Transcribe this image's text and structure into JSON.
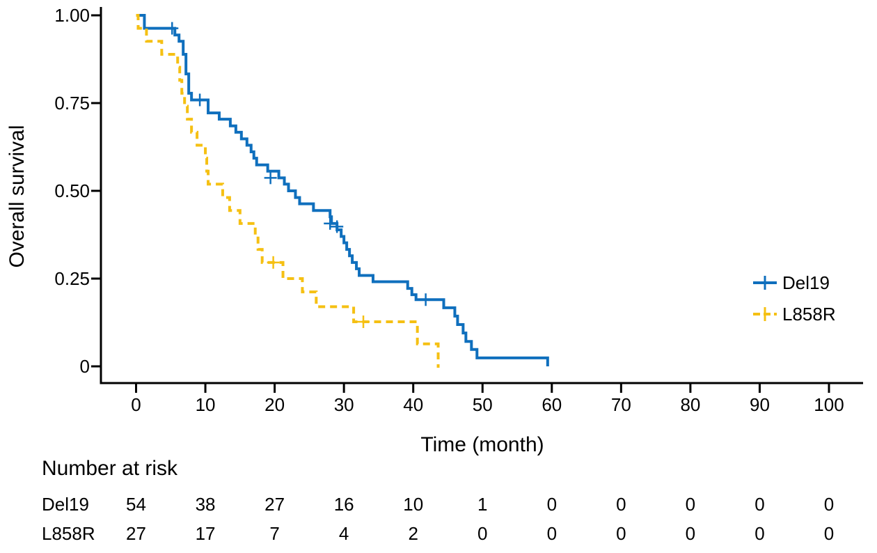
{
  "chart_data": {
    "type": "line",
    "title": "",
    "xlabel": "Time (month)",
    "ylabel": "Overall survival",
    "xlim": [
      0,
      100
    ],
    "ylim": [
      0,
      1
    ],
    "x_ticks": [
      0,
      10,
      20,
      30,
      40,
      50,
      60,
      70,
      80,
      90,
      100
    ],
    "y_ticks": [
      {
        "value": 0,
        "label": "0"
      },
      {
        "value": 0.25,
        "label": "0.25"
      },
      {
        "value": 0.5,
        "label": "0.50"
      },
      {
        "value": 0.75,
        "label": "0.75"
      },
      {
        "value": 1,
        "label": "1.00"
      }
    ],
    "grid": false,
    "legend_position": "right",
    "series": [
      {
        "name": "Del19",
        "color": "#0f6fbd",
        "dash": "solid",
        "step_points": [
          [
            0,
            1.0
          ],
          [
            1.2,
            0.963
          ],
          [
            5.6,
            0.944
          ],
          [
            6.2,
            0.926
          ],
          [
            6.8,
            0.889
          ],
          [
            7.2,
            0.833
          ],
          [
            7.6,
            0.778
          ],
          [
            8.0,
            0.759
          ],
          [
            10.4,
            0.722
          ],
          [
            12.0,
            0.704
          ],
          [
            13.6,
            0.685
          ],
          [
            14.4,
            0.667
          ],
          [
            15.2,
            0.648
          ],
          [
            16.0,
            0.63
          ],
          [
            16.6,
            0.611
          ],
          [
            17.0,
            0.593
          ],
          [
            17.4,
            0.574
          ],
          [
            19.0,
            0.556
          ],
          [
            20.6,
            0.537
          ],
          [
            21.4,
            0.519
          ],
          [
            22.0,
            0.5
          ],
          [
            23.0,
            0.481
          ],
          [
            23.6,
            0.463
          ],
          [
            25.6,
            0.444
          ],
          [
            28.0,
            0.426
          ],
          [
            28.2,
            0.407
          ],
          [
            29.0,
            0.389
          ],
          [
            29.6,
            0.37
          ],
          [
            30.0,
            0.352
          ],
          [
            30.4,
            0.333
          ],
          [
            30.8,
            0.315
          ],
          [
            31.2,
            0.296
          ],
          [
            31.8,
            0.278
          ],
          [
            32.2,
            0.259
          ],
          [
            34.2,
            0.241
          ],
          [
            39.2,
            0.222
          ],
          [
            39.8,
            0.204
          ],
          [
            40.4,
            0.19
          ],
          [
            44.4,
            0.167
          ],
          [
            46.0,
            0.143
          ],
          [
            46.4,
            0.119
          ],
          [
            47.2,
            0.095
          ],
          [
            47.6,
            0.071
          ],
          [
            48.4,
            0.048
          ],
          [
            49.2,
            0.024
          ],
          [
            59.4,
            0.0
          ]
        ],
        "end_x": 59.4,
        "censored": [
          [
            5.2,
            0.963
          ],
          [
            9.2,
            0.759
          ],
          [
            19.4,
            0.537
          ],
          [
            28.0,
            0.407
          ],
          [
            29.0,
            0.398
          ],
          [
            41.8,
            0.19
          ]
        ]
      },
      {
        "name": "L858R",
        "color": "#f5c013",
        "dash": "dashed",
        "step_points": [
          [
            0,
            1.0
          ],
          [
            0.3,
            0.963
          ],
          [
            1.5,
            0.926
          ],
          [
            3.7,
            0.889
          ],
          [
            6.0,
            0.852
          ],
          [
            6.3,
            0.815
          ],
          [
            6.6,
            0.778
          ],
          [
            7.0,
            0.741
          ],
          [
            7.4,
            0.704
          ],
          [
            8.0,
            0.667
          ],
          [
            8.8,
            0.63
          ],
          [
            10.0,
            0.593
          ],
          [
            10.2,
            0.556
          ],
          [
            10.4,
            0.519
          ],
          [
            12.5,
            0.481
          ],
          [
            13.5,
            0.444
          ],
          [
            15.0,
            0.407
          ],
          [
            17.2,
            0.37
          ],
          [
            17.6,
            0.333
          ],
          [
            18.2,
            0.296
          ],
          [
            21.2,
            0.25
          ],
          [
            24.0,
            0.212
          ],
          [
            26.0,
            0.17
          ],
          [
            31.4,
            0.127
          ],
          [
            40.6,
            0.064
          ],
          [
            43.6,
            0.0
          ]
        ],
        "end_x": 43.8,
        "censored": [
          [
            19.8,
            0.296
          ],
          [
            32.8,
            0.127
          ]
        ]
      }
    ]
  },
  "risk_table": {
    "title": "Number at risk",
    "rows": [
      {
        "label": "Del19",
        "values": [
          "54",
          "38",
          "27",
          "16",
          "10",
          "1",
          "0",
          "0",
          "0",
          "0",
          "0"
        ]
      },
      {
        "label": "L858R",
        "values": [
          "27",
          "17",
          "7",
          "4",
          "2",
          "0",
          "0",
          "0",
          "0",
          "0",
          "0"
        ]
      }
    ]
  }
}
